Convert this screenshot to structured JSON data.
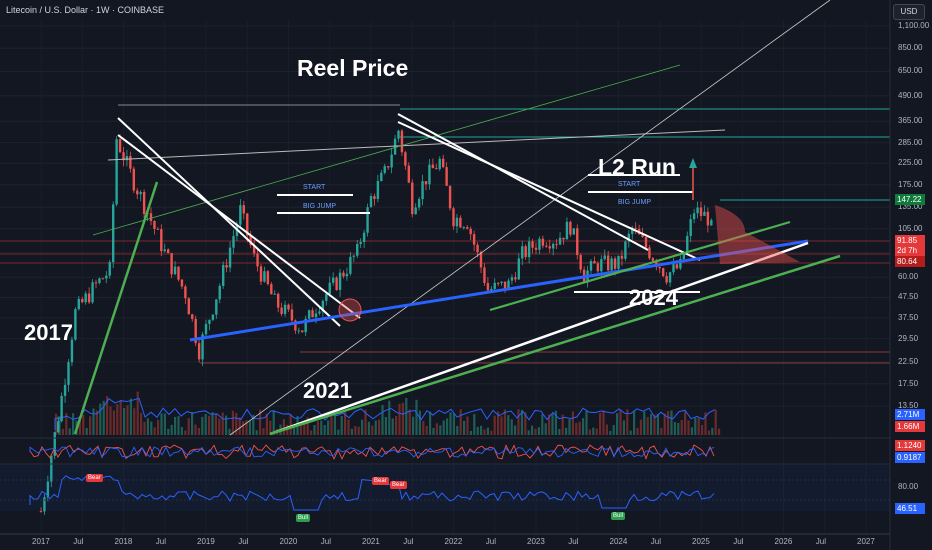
{
  "header": {
    "symbol_title": "Litecoin / U.S. Dollar · 1W · COINBASE",
    "currency_button": "USD"
  },
  "annotations": {
    "reel_price": "Reel Price",
    "l2_run": "L2 Run",
    "label_2017": "2017",
    "label_2021": "2021",
    "label_2024": "2024",
    "start_1": "START",
    "big_jump_1": "BIG JUMP",
    "start_2": "START",
    "big_jump_2": "BIG JUMP"
  },
  "price_tags": {
    "current": "147.22",
    "level_1": "91.85",
    "level_1_sub": "2d 7h",
    "level_2": "80.64",
    "volume_1": "2.71M",
    "volume_2": "1.66M",
    "osc_1": "1.1240",
    "osc_2": "0.9187",
    "rsi": "46.51"
  },
  "indicator_badges": {
    "bear_1": "Bear",
    "bear_2": "Bear",
    "bear_3": "Bear",
    "bull_1": "Bull",
    "bull_2": "Bull"
  },
  "colors": {
    "background": "#131722",
    "up": "#26a69a",
    "down": "#ef5350",
    "blue_trend": "#2962ff",
    "green_trend": "#4caf50",
    "white_lines": "#ffffff",
    "rsi_line": "#2962ff",
    "osc_blue": "#2962ff",
    "osc_red": "#ef5350"
  },
  "chart_data": {
    "type": "line",
    "title": "Litecoin / U.S. Dollar · 1W · COINBASE",
    "y_scale": "log",
    "y_ticks": [
      "1,100.00",
      "850.00",
      "650.00",
      "490.00",
      "365.00",
      "285.00",
      "225.00",
      "175.00",
      "135.00",
      "105.00",
      "80.00",
      "60.00",
      "47.50",
      "37.50",
      "29.50",
      "22.50",
      "17.50",
      "13.50"
    ],
    "x_ticks": [
      "2017",
      "Jul",
      "2018",
      "Jul",
      "2019",
      "Jul",
      "2020",
      "Jul",
      "2021",
      "Jul",
      "2022",
      "Jul",
      "2023",
      "Jul",
      "2024",
      "Jul",
      "2025",
      "Jul",
      "2026",
      "Jul",
      "2027"
    ],
    "rsi_ticks": [
      "80.00"
    ],
    "series": [
      {
        "name": "LTCUSD",
        "x": [
          "2017-01",
          "2017-04",
          "2017-06",
          "2017-09",
          "2017-11",
          "2017-12",
          "2018-02",
          "2018-04",
          "2018-07",
          "2018-10",
          "2018-12",
          "2019-03",
          "2019-06",
          "2019-08",
          "2019-11",
          "2020-03",
          "2020-05",
          "2020-08",
          "2020-11",
          "2021-01",
          "2021-03",
          "2021-05",
          "2021-07",
          "2021-09",
          "2021-11",
          "2022-01",
          "2022-03",
          "2022-06",
          "2022-09",
          "2022-11",
          "2023-02",
          "2023-04",
          "2023-06",
          "2023-08",
          "2023-10",
          "2024-01",
          "2024-03",
          "2024-06",
          "2024-08",
          "2024-10",
          "2024-12",
          "2025-01",
          "2025-02",
          "2025-03"
        ],
        "values": [
          4,
          15,
          40,
          55,
          65,
          300,
          200,
          140,
          80,
          50,
          26,
          55,
          130,
          75,
          45,
          33,
          43,
          57,
          80,
          150,
          200,
          330,
          140,
          190,
          230,
          120,
          115,
          52,
          55,
          78,
          95,
          93,
          110,
          62,
          70,
          70,
          105,
          77,
          62,
          68,
          130,
          125,
          120,
          92
        ]
      }
    ],
    "current_price": 147.22,
    "levels": [
      91.85,
      80.64
    ],
    "rsi_value": 46.51,
    "volume_values": [
      "2.71M",
      "1.66M"
    ],
    "oscillator_values": [
      1.124,
      0.9187
    ]
  }
}
